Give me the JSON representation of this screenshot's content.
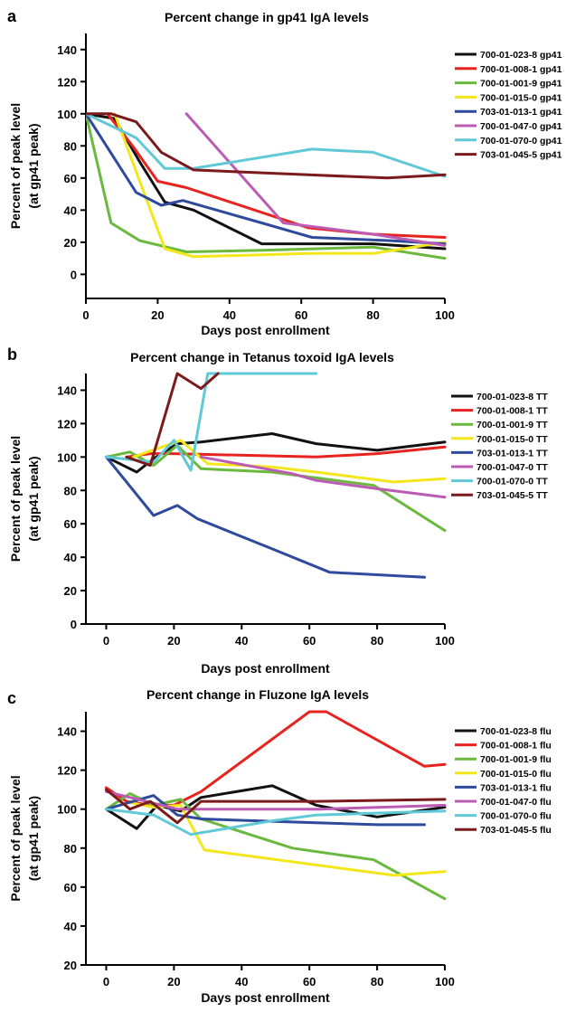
{
  "chart_data": [
    {
      "type": "line",
      "panel": "a",
      "title": "Percent change in gp41 IgA levels",
      "xlabel": "Days post enrollment",
      "ylabel": [
        "Percent of peak level",
        "(at gp41 peak)"
      ],
      "xlim": [
        0,
        100
      ],
      "ylim": [
        -15,
        150
      ],
      "xticks": [
        0,
        20,
        40,
        60,
        80,
        100
      ],
      "yticks": [
        0,
        20,
        40,
        60,
        80,
        100,
        120,
        140
      ],
      "series": [
        {
          "name": "700-01-023-8 gp41",
          "color": "#111111",
          "points": [
            [
              0,
              100
            ],
            [
              8,
              97
            ],
            [
              15,
              70
            ],
            [
              22,
              45
            ],
            [
              30,
              40
            ],
            [
              49,
              19
            ],
            [
              62,
              19
            ],
            [
              80,
              19
            ],
            [
              100,
              16
            ]
          ]
        },
        {
          "name": "700-01-008-1 gp41",
          "color": "#e8231f",
          "points": [
            [
              6,
              100
            ],
            [
              13,
              80
            ],
            [
              20,
              58
            ],
            [
              28,
              54
            ],
            [
              62,
              29
            ],
            [
              80,
              25
            ],
            [
              100,
              23
            ]
          ]
        },
        {
          "name": "700-01-001-9 gp41",
          "color": "#6ab93e",
          "points": [
            [
              0,
              100
            ],
            [
              7,
              32
            ],
            [
              15,
              21
            ],
            [
              28,
              14
            ],
            [
              49,
              15
            ],
            [
              80,
              17
            ],
            [
              100,
              10
            ]
          ]
        },
        {
          "name": "700-01-015-0 gp41",
          "color": "#f3e61b",
          "points": [
            [
              8,
              100
            ],
            [
              22,
              16
            ],
            [
              30,
              11
            ],
            [
              62,
              13
            ],
            [
              80,
              13
            ],
            [
              100,
              20
            ]
          ]
        },
        {
          "name": "703-01-013-1 gp41",
          "color": "#2e4a9c",
          "points": [
            [
              0,
              100
            ],
            [
              14,
              51
            ],
            [
              21,
              43
            ],
            [
              27,
              46
            ],
            [
              49,
              32
            ],
            [
              63,
              23
            ],
            [
              85,
              21
            ],
            [
              100,
              19
            ]
          ]
        },
        {
          "name": "700-01-047-0 gp41",
          "color": "#bc5bb3",
          "points": [
            [
              28,
              100
            ],
            [
              55,
              32
            ],
            [
              80,
              25
            ],
            [
              100,
              18
            ]
          ]
        },
        {
          "name": "700-01-070-0 gp41",
          "color": "#60c8d6",
          "points": [
            [
              0,
              100
            ],
            [
              14,
              85
            ],
            [
              22,
              66
            ],
            [
              30,
              66
            ],
            [
              63,
              78
            ],
            [
              80,
              76
            ],
            [
              100,
              61
            ]
          ]
        },
        {
          "name": "703-01-045-5 gp41",
          "color": "#7b1a1c",
          "points": [
            [
              0,
              100
            ],
            [
              7,
              100
            ],
            [
              14,
              95
            ],
            [
              21,
              76
            ],
            [
              30,
              65
            ],
            [
              62,
              62
            ],
            [
              84,
              60
            ],
            [
              100,
              62
            ]
          ]
        }
      ]
    },
    {
      "type": "line",
      "panel": "b",
      "title": "Percent change in Tetanus toxoid IgA levels",
      "xlabel": "Days post enrollment",
      "ylabel": [
        "Percent of peak level",
        "(at gp41 peak)"
      ],
      "xlim": [
        -6,
        100
      ],
      "ylim": [
        0,
        150
      ],
      "xticks": [
        0,
        20,
        40,
        60,
        80,
        100
      ],
      "yticks": [
        0,
        20,
        40,
        60,
        80,
        100,
        120,
        140
      ],
      "series": [
        {
          "name": "700-01-023-8 TT",
          "color": "#111111",
          "points": [
            [
              0,
              100
            ],
            [
              9,
              91
            ],
            [
              14,
              99
            ],
            [
              21,
              108
            ],
            [
              28,
              109
            ],
            [
              49,
              114
            ],
            [
              62,
              108
            ],
            [
              80,
              104
            ],
            [
              100,
              109
            ]
          ]
        },
        {
          "name": "700-01-008-1 TT",
          "color": "#e8231f",
          "points": [
            [
              6,
              100
            ],
            [
              13,
              102
            ],
            [
              20,
              102
            ],
            [
              62,
              100
            ],
            [
              80,
              102
            ],
            [
              100,
              106
            ]
          ]
        },
        {
          "name": "700-01-001-9 TT",
          "color": "#6ab93e",
          "points": [
            [
              0,
              100
            ],
            [
              7,
              103
            ],
            [
              14,
              95
            ],
            [
              21,
              107
            ],
            [
              28,
              93
            ],
            [
              49,
              91
            ],
            [
              79,
              83
            ],
            [
              100,
              56
            ]
          ]
        },
        {
          "name": "700-01-015-0 TT",
          "color": "#f3e61b",
          "points": [
            [
              8,
              100
            ],
            [
              22,
              110
            ],
            [
              30,
              96
            ],
            [
              49,
              94
            ],
            [
              62,
              91
            ],
            [
              85,
              85
            ],
            [
              100,
              87
            ]
          ]
        },
        {
          "name": "703-01-013-1 TT",
          "color": "#2e4a9c",
          "points": [
            [
              0,
              100
            ],
            [
              14,
              65
            ],
            [
              21,
              71
            ],
            [
              27,
              63
            ],
            [
              49,
              45
            ],
            [
              66,
              31
            ],
            [
              94,
              28
            ]
          ]
        },
        {
          "name": "700-01-047-0 TT",
          "color": "#bc5bb3",
          "points": [
            [
              28,
              100
            ],
            [
              55,
              90
            ],
            [
              62,
              86
            ],
            [
              80,
              81
            ],
            [
              100,
              76
            ]
          ]
        },
        {
          "name": "700-01-070-0 TT",
          "color": "#60c8d6",
          "points": [
            [
              0,
              100
            ],
            [
              14,
              97
            ],
            [
              20,
              110
            ],
            [
              25,
              92
            ],
            [
              30,
              150
            ],
            [
              62,
              150
            ]
          ]
        },
        {
          "name": "703-01-045-5 TT",
          "color": "#7b1a1c",
          "points": [
            [
              6,
              100
            ],
            [
              13,
              95
            ],
            [
              21,
              150
            ],
            [
              28,
              141
            ],
            [
              33,
              150
            ]
          ]
        }
      ]
    },
    {
      "type": "line",
      "panel": "c",
      "title": "Percent change in Fluzone IgA levels",
      "xlabel": "Days post enrollment",
      "ylabel": [
        "Percent of peak level",
        "(at gp41 peak)"
      ],
      "xlim": [
        -6,
        100
      ],
      "ylim": [
        20,
        150
      ],
      "xticks": [
        0,
        20,
        40,
        60,
        80,
        100
      ],
      "yticks": [
        20,
        40,
        60,
        80,
        100,
        120,
        140
      ],
      "series": [
        {
          "name": "700-01-023-8 flu",
          "color": "#111111",
          "points": [
            [
              0,
              100
            ],
            [
              9,
              90
            ],
            [
              15,
              102
            ],
            [
              22,
              99
            ],
            [
              28,
              106
            ],
            [
              49,
              112
            ],
            [
              62,
              102
            ],
            [
              80,
              96
            ],
            [
              100,
              101
            ]
          ]
        },
        {
          "name": "700-01-008-1 flu",
          "color": "#e8231f",
          "points": [
            [
              0,
              111
            ],
            [
              6,
              104
            ],
            [
              13,
              102
            ],
            [
              20,
              102
            ],
            [
              28,
              109
            ],
            [
              60,
              150
            ],
            [
              65,
              150
            ],
            [
              94,
              122
            ],
            [
              100,
              123
            ]
          ]
        },
        {
          "name": "700-01-001-9 flu",
          "color": "#6ab93e",
          "points": [
            [
              0,
              100
            ],
            [
              7,
              108
            ],
            [
              14,
              102
            ],
            [
              22,
              105
            ],
            [
              28,
              95
            ],
            [
              55,
              80
            ],
            [
              79,
              74
            ],
            [
              100,
              54
            ]
          ]
        },
        {
          "name": "700-01-015-0 flu",
          "color": "#f3e61b",
          "points": [
            [
              8,
              103
            ],
            [
              14,
              101
            ],
            [
              22,
              102
            ],
            [
              29,
              79
            ],
            [
              85,
              66
            ],
            [
              100,
              68
            ]
          ]
        },
        {
          "name": "703-01-013-1 flu",
          "color": "#2e4a9c",
          "points": [
            [
              0,
              100
            ],
            [
              14,
              107
            ],
            [
              21,
              97
            ],
            [
              28,
              95
            ],
            [
              62,
              93
            ],
            [
              80,
              92
            ],
            [
              94,
              92
            ]
          ]
        },
        {
          "name": "700-01-047-0 flu",
          "color": "#bc5bb3",
          "points": [
            [
              0,
              109
            ],
            [
              14,
              103
            ],
            [
              21,
              100
            ],
            [
              30,
              100
            ],
            [
              63,
              100
            ],
            [
              100,
              102
            ]
          ]
        },
        {
          "name": "700-01-070-0 flu",
          "color": "#60c8d6",
          "points": [
            [
              0,
              100
            ],
            [
              14,
              97
            ],
            [
              25,
              87
            ],
            [
              49,
              94
            ],
            [
              62,
              97
            ],
            [
              100,
              99
            ]
          ]
        },
        {
          "name": "703-01-045-5 flu",
          "color": "#7b1a1c",
          "points": [
            [
              0,
              110
            ],
            [
              7,
              100
            ],
            [
              13,
              104
            ],
            [
              21,
              93
            ],
            [
              28,
              104
            ],
            [
              62,
              104
            ],
            [
              100,
              105
            ]
          ]
        }
      ]
    }
  ]
}
